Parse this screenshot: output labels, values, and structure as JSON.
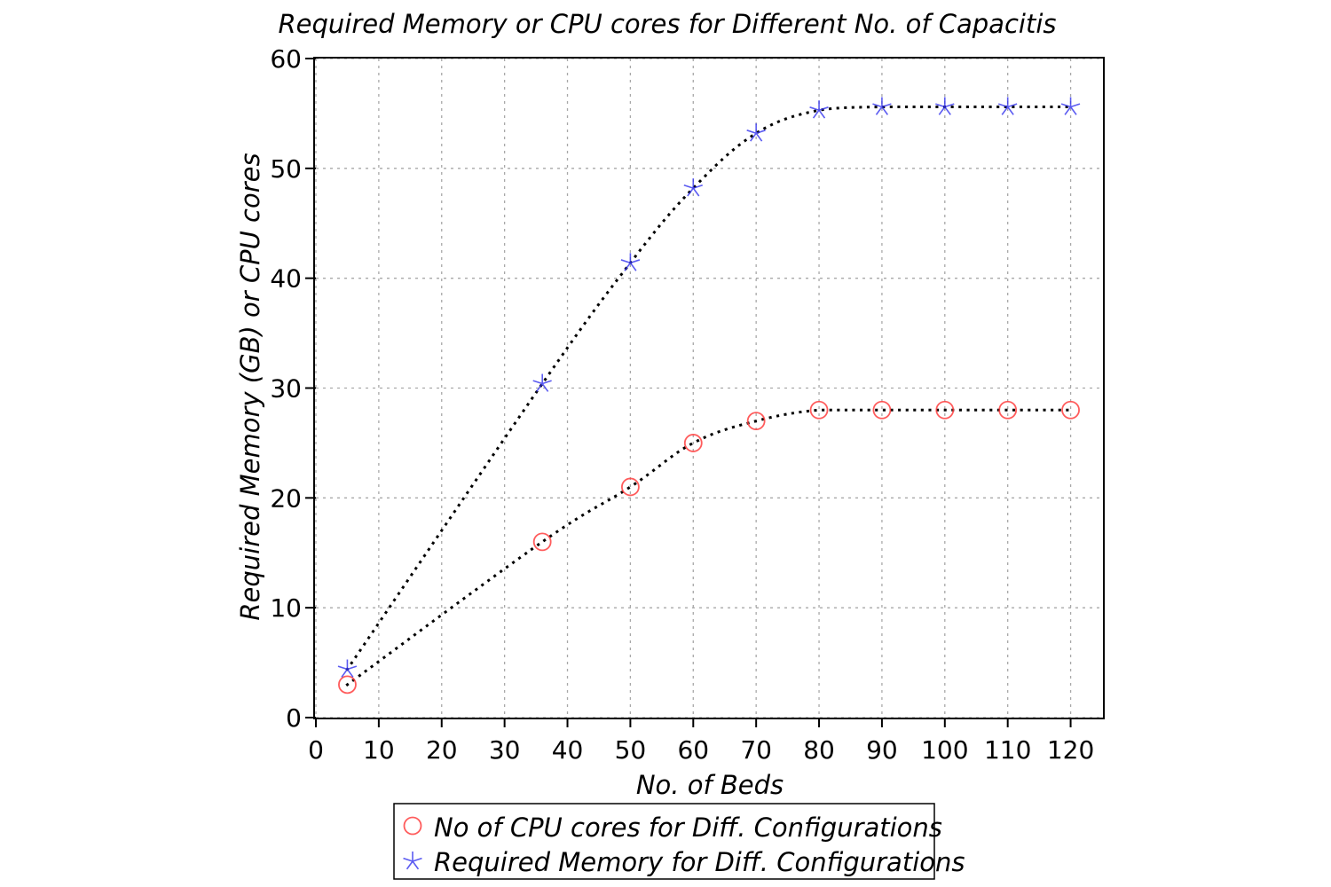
{
  "chart_data": {
    "type": "line",
    "title": "Required Memory or CPU cores for Different No. of Capacitis",
    "xlabel": "No. of Beds",
    "ylabel": "Required Memory (GB) or CPU cores",
    "xlim": [
      0,
      125
    ],
    "ylim": [
      0,
      60
    ],
    "xticks": [
      0,
      10,
      20,
      30,
      40,
      50,
      60,
      70,
      80,
      90,
      100,
      110,
      120
    ],
    "yticks": [
      0,
      10,
      20,
      30,
      40,
      50,
      60
    ],
    "grid": true,
    "legend_position": "bottom-center",
    "x": [
      5,
      36,
      50,
      60,
      70,
      80,
      90,
      100,
      110,
      120
    ],
    "series": [
      {
        "name": "No of CPU cores for Diff. Configurations",
        "marker": "circle",
        "color": "#ff4040",
        "line": "dotted",
        "values": [
          3,
          16,
          21,
          25,
          27,
          28,
          28,
          28,
          28,
          28
        ]
      },
      {
        "name": "Required Memory for Diff. Configurations",
        "marker": "star",
        "color": "#3333ee",
        "line": "dotted",
        "values": [
          4.4,
          30.4,
          41.4,
          48.2,
          53.2,
          55.3,
          55.6,
          55.6,
          55.6,
          55.6
        ]
      }
    ]
  }
}
